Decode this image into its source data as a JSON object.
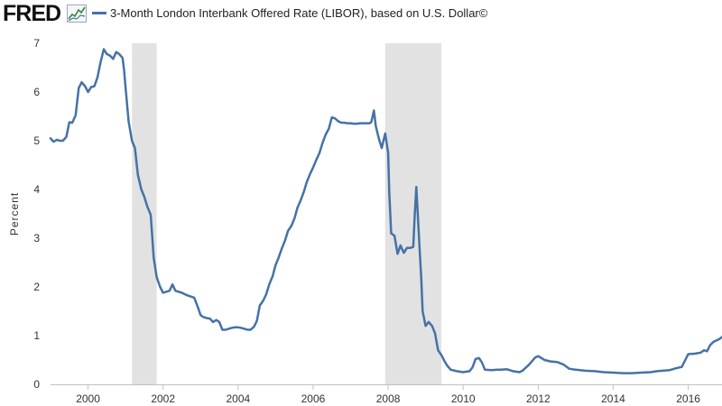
{
  "header": {
    "logo_text": "FRED",
    "logo_icon": "chart-line-icon"
  },
  "colors": {
    "series": "#4572a7",
    "recession": "#e2e2e2",
    "axis": "#c0c0c0"
  },
  "chart_data": {
    "type": "line",
    "title": "",
    "xlabel": "",
    "ylabel": "Percent",
    "xlim": [
      1999.0,
      2016.9
    ],
    "ylim": [
      0,
      7
    ],
    "grid": false,
    "legend_position": "top",
    "y_ticks": [
      0,
      1,
      2,
      3,
      4,
      5,
      6,
      7
    ],
    "x_ticks": [
      2000,
      2002,
      2004,
      2006,
      2008,
      2010,
      2012,
      2014,
      2016
    ],
    "recessions": [
      {
        "start": 2001.17,
        "end": 2001.83
      },
      {
        "start": 2007.92,
        "end": 2009.42
      }
    ],
    "series": [
      {
        "name": "3-Month London Interbank Offered Rate (LIBOR), based on U.S. Dollar©",
        "points": [
          [
            1999.0,
            5.05
          ],
          [
            1999.08,
            4.98
          ],
          [
            1999.17,
            5.02
          ],
          [
            1999.25,
            5.0
          ],
          [
            1999.33,
            5.0
          ],
          [
            1999.42,
            5.08
          ],
          [
            1999.5,
            5.38
          ],
          [
            1999.58,
            5.37
          ],
          [
            1999.67,
            5.52
          ],
          [
            1999.75,
            6.08
          ],
          [
            1999.83,
            6.2
          ],
          [
            1999.92,
            6.12
          ],
          [
            2000.0,
            6.0
          ],
          [
            2000.08,
            6.1
          ],
          [
            2000.17,
            6.12
          ],
          [
            2000.25,
            6.3
          ],
          [
            2000.33,
            6.6
          ],
          [
            2000.42,
            6.88
          ],
          [
            2000.5,
            6.78
          ],
          [
            2000.58,
            6.75
          ],
          [
            2000.67,
            6.68
          ],
          [
            2000.75,
            6.82
          ],
          [
            2000.83,
            6.78
          ],
          [
            2000.92,
            6.7
          ],
          [
            2000.96,
            6.45
          ],
          [
            2001.0,
            6.1
          ],
          [
            2001.08,
            5.4
          ],
          [
            2001.17,
            5.0
          ],
          [
            2001.25,
            4.85
          ],
          [
            2001.33,
            4.3
          ],
          [
            2001.42,
            4.0
          ],
          [
            2001.5,
            3.85
          ],
          [
            2001.58,
            3.65
          ],
          [
            2001.67,
            3.48
          ],
          [
            2001.75,
            2.6
          ],
          [
            2001.83,
            2.2
          ],
          [
            2001.92,
            2.0
          ],
          [
            2002.0,
            1.88
          ],
          [
            2002.08,
            1.9
          ],
          [
            2002.17,
            1.92
          ],
          [
            2002.25,
            2.05
          ],
          [
            2002.33,
            1.92
          ],
          [
            2002.42,
            1.9
          ],
          [
            2002.5,
            1.88
          ],
          [
            2002.58,
            1.85
          ],
          [
            2002.67,
            1.82
          ],
          [
            2002.75,
            1.8
          ],
          [
            2002.83,
            1.78
          ],
          [
            2002.92,
            1.6
          ],
          [
            2003.0,
            1.42
          ],
          [
            2003.08,
            1.38
          ],
          [
            2003.17,
            1.36
          ],
          [
            2003.25,
            1.35
          ],
          [
            2003.33,
            1.28
          ],
          [
            2003.42,
            1.32
          ],
          [
            2003.5,
            1.28
          ],
          [
            2003.58,
            1.12
          ],
          [
            2003.67,
            1.12
          ],
          [
            2003.75,
            1.14
          ],
          [
            2003.83,
            1.16
          ],
          [
            2003.92,
            1.17
          ],
          [
            2004.0,
            1.17
          ],
          [
            2004.08,
            1.16
          ],
          [
            2004.17,
            1.14
          ],
          [
            2004.25,
            1.12
          ],
          [
            2004.33,
            1.12
          ],
          [
            2004.42,
            1.18
          ],
          [
            2004.5,
            1.3
          ],
          [
            2004.58,
            1.62
          ],
          [
            2004.67,
            1.72
          ],
          [
            2004.75,
            1.85
          ],
          [
            2004.83,
            2.05
          ],
          [
            2004.92,
            2.22
          ],
          [
            2005.0,
            2.45
          ],
          [
            2005.08,
            2.6
          ],
          [
            2005.17,
            2.8
          ],
          [
            2005.25,
            2.95
          ],
          [
            2005.33,
            3.15
          ],
          [
            2005.42,
            3.25
          ],
          [
            2005.5,
            3.4
          ],
          [
            2005.58,
            3.62
          ],
          [
            2005.67,
            3.78
          ],
          [
            2005.75,
            3.95
          ],
          [
            2005.83,
            4.15
          ],
          [
            2005.92,
            4.32
          ],
          [
            2006.0,
            4.45
          ],
          [
            2006.08,
            4.6
          ],
          [
            2006.17,
            4.75
          ],
          [
            2006.25,
            4.95
          ],
          [
            2006.33,
            5.12
          ],
          [
            2006.42,
            5.25
          ],
          [
            2006.5,
            5.48
          ],
          [
            2006.58,
            5.46
          ],
          [
            2006.67,
            5.4
          ],
          [
            2006.75,
            5.37
          ],
          [
            2006.83,
            5.37
          ],
          [
            2006.92,
            5.36
          ],
          [
            2007.0,
            5.36
          ],
          [
            2007.08,
            5.35
          ],
          [
            2007.17,
            5.35
          ],
          [
            2007.25,
            5.36
          ],
          [
            2007.33,
            5.36
          ],
          [
            2007.42,
            5.36
          ],
          [
            2007.5,
            5.36
          ],
          [
            2007.55,
            5.38
          ],
          [
            2007.62,
            5.62
          ],
          [
            2007.67,
            5.3
          ],
          [
            2007.75,
            5.05
          ],
          [
            2007.83,
            4.85
          ],
          [
            2007.92,
            5.15
          ],
          [
            2008.0,
            4.75
          ],
          [
            2008.03,
            3.95
          ],
          [
            2008.08,
            3.1
          ],
          [
            2008.17,
            3.05
          ],
          [
            2008.25,
            2.68
          ],
          [
            2008.33,
            2.85
          ],
          [
            2008.42,
            2.7
          ],
          [
            2008.5,
            2.8
          ],
          [
            2008.58,
            2.8
          ],
          [
            2008.67,
            2.82
          ],
          [
            2008.71,
            3.5
          ],
          [
            2008.75,
            4.05
          ],
          [
            2008.79,
            3.5
          ],
          [
            2008.83,
            2.9
          ],
          [
            2008.88,
            2.2
          ],
          [
            2008.92,
            1.5
          ],
          [
            2009.0,
            1.2
          ],
          [
            2009.08,
            1.28
          ],
          [
            2009.17,
            1.2
          ],
          [
            2009.25,
            1.05
          ],
          [
            2009.33,
            0.7
          ],
          [
            2009.42,
            0.6
          ],
          [
            2009.5,
            0.48
          ],
          [
            2009.58,
            0.38
          ],
          [
            2009.67,
            0.3
          ],
          [
            2009.83,
            0.27
          ],
          [
            2010.0,
            0.25
          ],
          [
            2010.17,
            0.27
          ],
          [
            2010.25,
            0.35
          ],
          [
            2010.33,
            0.52
          ],
          [
            2010.42,
            0.54
          ],
          [
            2010.5,
            0.45
          ],
          [
            2010.58,
            0.3
          ],
          [
            2010.75,
            0.29
          ],
          [
            2010.92,
            0.3
          ],
          [
            2011.0,
            0.3
          ],
          [
            2011.17,
            0.31
          ],
          [
            2011.33,
            0.27
          ],
          [
            2011.5,
            0.25
          ],
          [
            2011.58,
            0.28
          ],
          [
            2011.75,
            0.4
          ],
          [
            2011.92,
            0.55
          ],
          [
            2012.0,
            0.58
          ],
          [
            2012.17,
            0.5
          ],
          [
            2012.33,
            0.47
          ],
          [
            2012.5,
            0.46
          ],
          [
            2012.67,
            0.41
          ],
          [
            2012.83,
            0.32
          ],
          [
            2013.0,
            0.3
          ],
          [
            2013.25,
            0.28
          ],
          [
            2013.5,
            0.27
          ],
          [
            2013.75,
            0.25
          ],
          [
            2014.0,
            0.24
          ],
          [
            2014.25,
            0.23
          ],
          [
            2014.5,
            0.23
          ],
          [
            2014.75,
            0.24
          ],
          [
            2015.0,
            0.25
          ],
          [
            2015.17,
            0.27
          ],
          [
            2015.33,
            0.28
          ],
          [
            2015.5,
            0.29
          ],
          [
            2015.67,
            0.33
          ],
          [
            2015.83,
            0.36
          ],
          [
            2015.92,
            0.5
          ],
          [
            2016.0,
            0.62
          ],
          [
            2016.17,
            0.63
          ],
          [
            2016.33,
            0.65
          ],
          [
            2016.42,
            0.7
          ],
          [
            2016.5,
            0.68
          ],
          [
            2016.58,
            0.8
          ],
          [
            2016.67,
            0.87
          ],
          [
            2016.75,
            0.9
          ],
          [
            2016.83,
            0.93
          ],
          [
            2016.9,
            0.97
          ]
        ]
      }
    ]
  }
}
